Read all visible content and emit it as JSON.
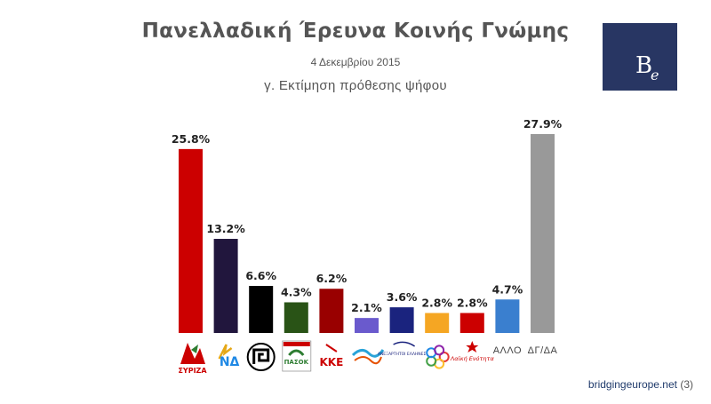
{
  "header": {
    "title": "Πανελλαδική Έρευνα Κοινής Γνώμης",
    "date": "4 Δεκεμβρίου 2015",
    "subtitle": "γ. Εκτίμηση πρόθεσης ψήφου"
  },
  "brand_logo": {
    "letter1": "B",
    "letter2": "e",
    "color": "#283663"
  },
  "footer": {
    "site": "bridgingeurope.net",
    "page": "(3)"
  },
  "chart_data": {
    "type": "bar",
    "categories": [
      "ΣΥΡΙΖΑ",
      "ΝΔ",
      "Χρυσή Αυγή",
      "ΠΑΣΟΚ",
      "ΚΚΕ",
      "Ποτάμι",
      "Ανεξάρτητοι Έλληνες",
      "Ένωση Κεντρώων",
      "Λαϊκή Ενότητα",
      "ΑΛΛΟ",
      "ΔΓ/ΔΑ"
    ],
    "value_labels": [
      "25.8%",
      "13.2%",
      "6.6%",
      "4.3%",
      "6.2%",
      "2.1%",
      "3.6%",
      "2.8%",
      "2.8%",
      "4.7%",
      "27.9%"
    ],
    "values": [
      25.8,
      13.2,
      6.6,
      4.3,
      6.2,
      2.1,
      3.6,
      2.8,
      2.8,
      4.7,
      27.9
    ],
    "colors": [
      "#cc0000",
      "#21163d",
      "#000000",
      "#295316",
      "#990000",
      "#6a5acd",
      "#1a237e",
      "#f5a623",
      "#cc0000",
      "#3a7fcf",
      "#999999"
    ],
    "logo_texts": [
      "ΣΥΡΙΖΑ",
      "ΝΔ",
      "",
      "ΠΑΣΟΚ",
      "ΚΚΕ",
      "",
      "ΑΝΕΞΑΡΤΗΤΟΙ ΕΛΛΗΝΕΣ",
      "",
      "Λαϊκή Ενότητα",
      "ΑΛΛΟ",
      "ΔΓ/ΔΑ"
    ],
    "logo_icons": [
      "syriza-icon",
      "nd-icon",
      "golden-dawn-icon",
      "pasok-icon",
      "kke-icon",
      "potami-icon",
      "anel-icon",
      "enosi-kentroon-icon",
      "laiki-enotita-icon",
      "",
      ""
    ],
    "ylim": [
      0,
      27.9
    ],
    "grid": false,
    "legend": "none"
  }
}
